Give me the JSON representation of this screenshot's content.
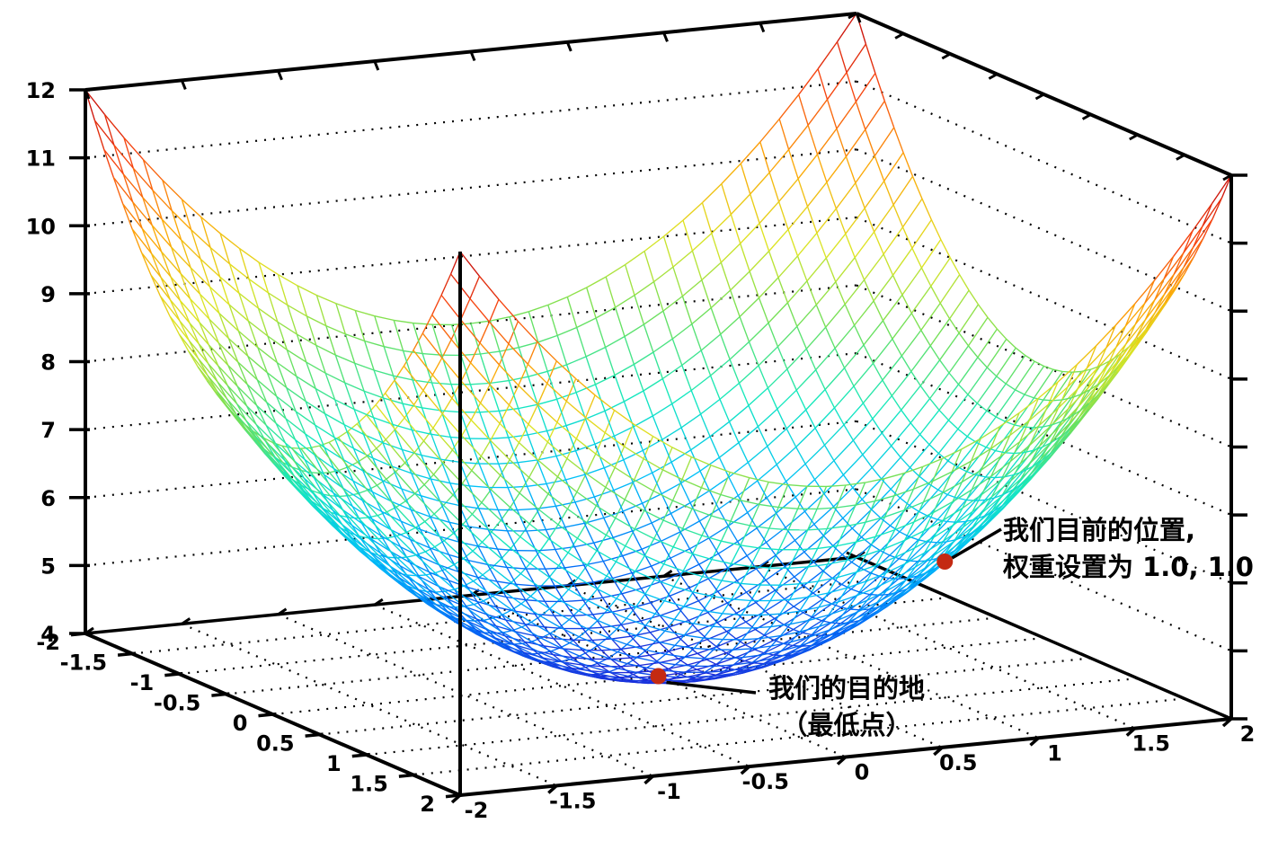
{
  "chart_data": {
    "type": "surface",
    "title": "",
    "z_expr": "x*x + y*y + 4",
    "x_range": [
      -2,
      2
    ],
    "y_range": [
      -2,
      2
    ],
    "z_range": [
      4,
      12
    ],
    "x_tick_values": [
      -2,
      -1.5,
      -1,
      -0.5,
      0,
      0.5,
      1,
      1.5,
      2
    ],
    "x_tick_labels": [
      "-2",
      "-1.5",
      "-1",
      "-0.5",
      "0",
      "0.5",
      "1",
      "1.5",
      "2"
    ],
    "y_tick_values": [
      -2,
      -1.5,
      -1,
      -0.5,
      0,
      0.5,
      1,
      1.5,
      2
    ],
    "y_tick_labels": [
      "-2",
      "-1.5",
      "-1",
      "-0.5",
      "0",
      "0.5",
      "1",
      "1.5",
      "2"
    ],
    "z_tick_values": [
      4,
      5,
      6,
      7,
      8,
      9,
      10,
      11,
      12
    ],
    "z_tick_labels": [
      "4",
      "5",
      "6",
      "7",
      "8",
      "9",
      "10",
      "11",
      "12"
    ],
    "mesh_divisions": 40,
    "floor_grid_step": 0.5,
    "wall_grid_levels": [
      5,
      6,
      7,
      8,
      9,
      10,
      11
    ],
    "grid_on": true,
    "legend": null,
    "colormap": {
      "name": "jet",
      "stops": [
        [
          0.0,
          "#1e28d8"
        ],
        [
          0.125,
          "#006ef8"
        ],
        [
          0.25,
          "#00c0f8"
        ],
        [
          0.375,
          "#14e8be"
        ],
        [
          0.5,
          "#6ee05a"
        ],
        [
          0.625,
          "#dee424"
        ],
        [
          0.75,
          "#fca808"
        ],
        [
          0.875,
          "#f84810"
        ],
        [
          1.0,
          "#c40a0a"
        ]
      ]
    },
    "markers": [
      {
        "id": "current-position",
        "x": 1.0,
        "y": 1.0,
        "z": 6.0,
        "color": "#c42a12"
      },
      {
        "id": "destination",
        "x": 0.0,
        "y": 0.0,
        "z": 4.0,
        "color": "#c42a12"
      }
    ],
    "annotations": [
      {
        "id": "current-position",
        "lines": [
          "我们目前的位置,",
          "权重设置为 1.0, 1.0"
        ]
      },
      {
        "id": "destination",
        "lines": [
          "我们的目的地",
          "（最低点）"
        ]
      }
    ],
    "axis_color": "#000000",
    "background": "#ffffff"
  }
}
